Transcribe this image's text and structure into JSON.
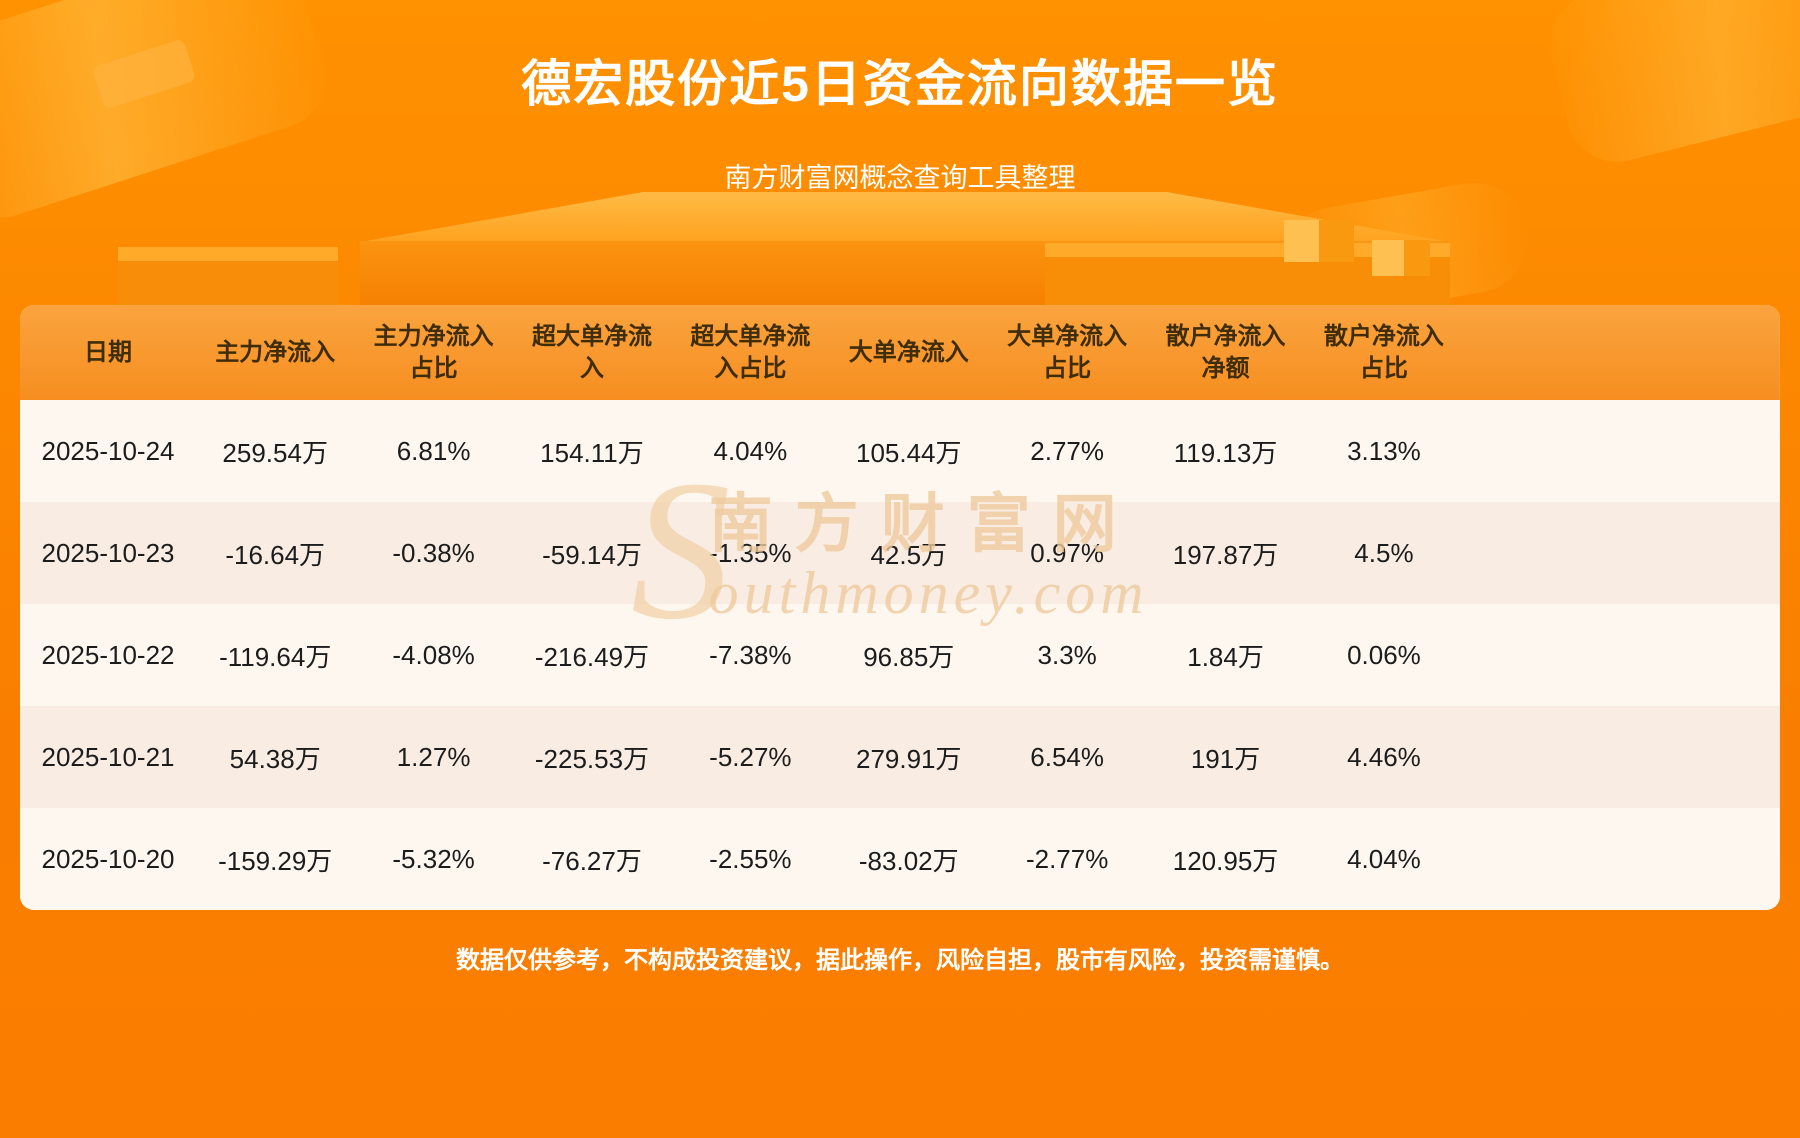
{
  "page": {
    "title": "德宏股份近5日资金流向数据一览",
    "subtitle": "南方财富网概念查询工具整理",
    "disclaimer": "数据仅供参考，不构成投资建议，据此操作，风险自担，股市有风险，投资需谨慎。"
  },
  "watermark": {
    "initial": "S",
    "cn": "南方财富网",
    "en": "outhmoney.com"
  },
  "chart_data": {
    "type": "table",
    "title": "德宏股份近5日资金流向数据一览",
    "columns": [
      "日期",
      "主力净流入",
      "主力净流入\n占比",
      "超大单净流\n入",
      "超大单净流\n入占比",
      "大单净流入",
      "大单净流入\n占比",
      "散户净流入\n净额",
      "散户净流入\n占比"
    ],
    "rows": [
      [
        "2025-10-24",
        "259.54万",
        "6.81%",
        "154.11万",
        "4.04%",
        "105.44万",
        "2.77%",
        "119.13万",
        "3.13%"
      ],
      [
        "2025-10-23",
        "-16.64万",
        "-0.38%",
        "-59.14万",
        "-1.35%",
        "42.5万",
        "0.97%",
        "197.87万",
        "4.5%"
      ],
      [
        "2025-10-22",
        "-119.64万",
        "-4.08%",
        "-216.49万",
        "-7.38%",
        "96.85万",
        "3.3%",
        "1.84万",
        "0.06%"
      ],
      [
        "2025-10-21",
        "54.38万",
        "1.27%",
        "-225.53万",
        "-5.27%",
        "279.91万",
        "6.54%",
        "191万",
        "4.46%"
      ],
      [
        "2025-10-20",
        "-159.29万",
        "-5.32%",
        "-76.27万",
        "-2.55%",
        "-83.02万",
        "-2.77%",
        "120.95万",
        "4.04%"
      ]
    ]
  },
  "colors": {
    "background_top": "#ff9200",
    "background_bottom": "#fa7d00",
    "header_background": "#f89a2f",
    "header_text": "#3f2c08",
    "row_odd": "#fdf7f0",
    "row_even": "#f8ece3",
    "body_text": "#1c1c1c",
    "title_text": "#ffffff"
  }
}
